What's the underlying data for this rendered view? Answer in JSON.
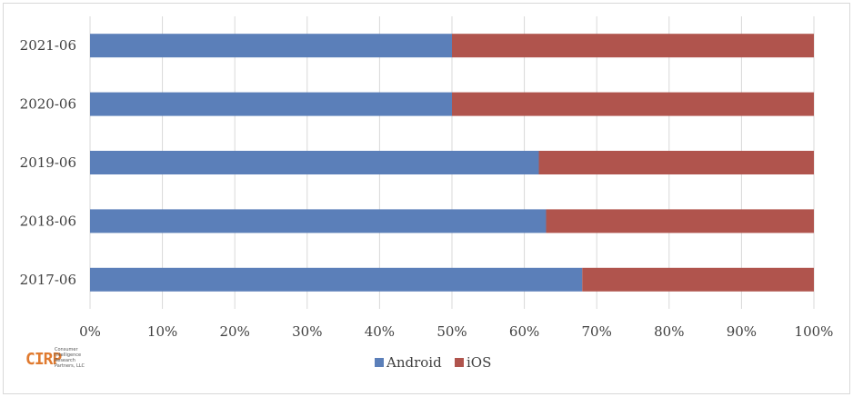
{
  "chart_data": {
    "type": "bar",
    "orientation": "horizontal",
    "stacked": true,
    "categories": [
      "2017-06",
      "2018-06",
      "2019-06",
      "2020-06",
      "2021-06"
    ],
    "series": [
      {
        "name": "Android",
        "color": "#5b7fb9",
        "values": [
          68,
          63,
          62,
          50,
          50
        ]
      },
      {
        "name": "iOS",
        "color": "#b0544d",
        "values": [
          32,
          37,
          38,
          50,
          50
        ]
      }
    ],
    "xlim": [
      0,
      100
    ],
    "x_tick_labels": [
      "0%",
      "10%",
      "20%",
      "30%",
      "40%",
      "50%",
      "60%",
      "70%",
      "80%",
      "90%",
      "100%"
    ],
    "grid": "vertical",
    "legend": "bottom-center",
    "title": "",
    "xlabel": "",
    "ylabel": ""
  },
  "logo": {
    "mark": "CIRP",
    "text": "Consumer Intelligence Research Partners, LLC"
  }
}
